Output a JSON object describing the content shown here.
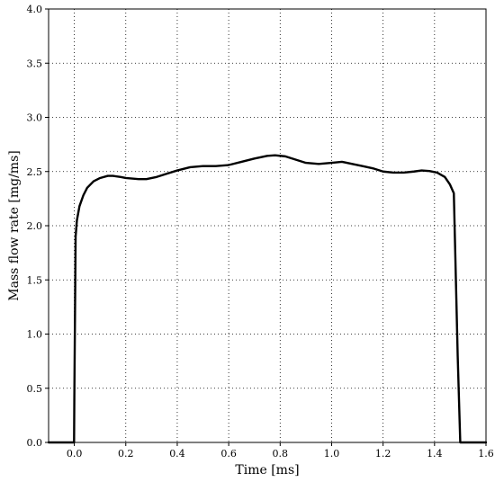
{
  "chart_data": {
    "type": "line",
    "xlabel": "Time [ms]",
    "ylabel": "Mass flow rate [mg/ms]",
    "xlim": [
      -0.1,
      1.6
    ],
    "ylim": [
      0.0,
      4.0
    ],
    "xticks": [
      0.0,
      0.2,
      0.4,
      0.6,
      0.8,
      1.0,
      1.2,
      1.4,
      1.6
    ],
    "xtick_labels": [
      "0.0",
      "0.2",
      "0.4",
      "0.6",
      "0.8",
      "1.0",
      "1.2",
      "1.4",
      "1.6"
    ],
    "yticks": [
      0.0,
      0.5,
      1.0,
      1.5,
      2.0,
      2.5,
      3.0,
      3.5,
      4.0
    ],
    "ytick_labels": [
      "0.0",
      "0.5",
      "1.0",
      "1.5",
      "2.0",
      "2.5",
      "3.0",
      "3.5",
      "4.0"
    ],
    "grid": true,
    "line_color": "#000000",
    "series": [
      {
        "x": [
          -0.1,
          -0.001,
          0.0,
          0.005,
          0.01,
          0.02,
          0.035,
          0.05,
          0.075,
          0.1,
          0.13,
          0.15,
          0.18,
          0.2,
          0.25,
          0.28,
          0.32,
          0.36,
          0.4,
          0.45,
          0.5,
          0.55,
          0.6,
          0.65,
          0.7,
          0.75,
          0.78,
          0.82,
          0.86,
          0.9,
          0.95,
          1.0,
          1.04,
          1.08,
          1.12,
          1.16,
          1.2,
          1.24,
          1.28,
          1.32,
          1.35,
          1.38,
          1.41,
          1.44,
          1.46,
          1.475,
          1.49,
          1.5,
          1.6
        ],
        "y": [
          0.0,
          0.0,
          0.4,
          1.9,
          2.05,
          2.18,
          2.28,
          2.35,
          2.41,
          2.44,
          2.46,
          2.46,
          2.45,
          2.44,
          2.43,
          2.43,
          2.45,
          2.48,
          2.51,
          2.54,
          2.55,
          2.55,
          2.56,
          2.59,
          2.62,
          2.645,
          2.65,
          2.64,
          2.61,
          2.58,
          2.57,
          2.58,
          2.59,
          2.57,
          2.55,
          2.53,
          2.5,
          2.49,
          2.49,
          2.5,
          2.51,
          2.505,
          2.49,
          2.45,
          2.38,
          2.3,
          0.8,
          0.0,
          0.0
        ]
      }
    ]
  }
}
